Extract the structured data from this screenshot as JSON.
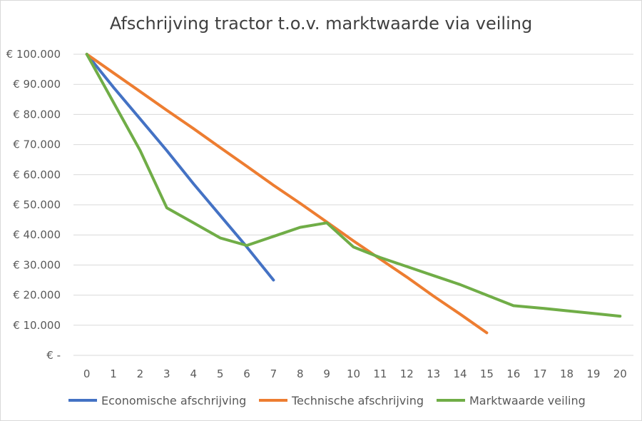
{
  "chart_data": {
    "type": "line",
    "title": "Afschrijving tractor t.o.v. marktwaarde via veiling",
    "xlabel": "",
    "ylabel": "",
    "x": [
      0,
      1,
      2,
      3,
      4,
      5,
      6,
      7,
      8,
      9,
      10,
      11,
      12,
      13,
      14,
      15,
      16,
      17,
      18,
      19,
      20
    ],
    "ylim": [
      0,
      100000
    ],
    "y_ticks": [
      {
        "value": 0,
        "label": "€ -"
      },
      {
        "value": 10000,
        "label": "€ 10.000"
      },
      {
        "value": 20000,
        "label": "€ 20.000"
      },
      {
        "value": 30000,
        "label": "€ 30.000"
      },
      {
        "value": 40000,
        "label": "€ 40.000"
      },
      {
        "value": 50000,
        "label": "€ 50.000"
      },
      {
        "value": 60000,
        "label": "€ 60.000"
      },
      {
        "value": 70000,
        "label": "€ 70.000"
      },
      {
        "value": 80000,
        "label": "€ 80.000"
      },
      {
        "value": 90000,
        "label": "€ 90.000"
      },
      {
        "value": 100000,
        "label": "€ 100.000"
      }
    ],
    "grid": true,
    "legend_position": "bottom",
    "series": [
      {
        "name": "Economische afschrijving",
        "color": "#4472c4",
        "points": [
          [
            0,
            100000
          ],
          [
            1,
            89000
          ],
          [
            2,
            78500
          ],
          [
            3,
            68000
          ],
          [
            4,
            57000
          ],
          [
            5,
            46500
          ],
          [
            6,
            36000
          ],
          [
            7,
            25000
          ]
        ]
      },
      {
        "name": "Technische afschrijving",
        "color": "#ed7d31",
        "points": [
          [
            0,
            100000
          ],
          [
            1,
            93800
          ],
          [
            2,
            87600
          ],
          [
            3,
            81400
          ],
          [
            4,
            75300
          ],
          [
            5,
            69000
          ],
          [
            6,
            62800
          ],
          [
            7,
            56500
          ],
          [
            8,
            50500
          ],
          [
            9,
            44300
          ],
          [
            10,
            38000
          ],
          [
            11,
            32000
          ],
          [
            12,
            26000
          ],
          [
            13,
            19700
          ],
          [
            14,
            13700
          ],
          [
            15,
            7500
          ]
        ]
      },
      {
        "name": "Marktwaarde veiling",
        "color": "#70ad47",
        "points": [
          [
            0,
            100000
          ],
          [
            1,
            84000
          ],
          [
            2,
            68000
          ],
          [
            3,
            49000
          ],
          [
            4,
            44000
          ],
          [
            5,
            39000
          ],
          [
            6,
            36500
          ],
          [
            7,
            39500
          ],
          [
            8,
            42500
          ],
          [
            9,
            44000
          ],
          [
            10,
            36000
          ],
          [
            11,
            32500
          ],
          [
            12,
            29500
          ],
          [
            13,
            26500
          ],
          [
            14,
            23500
          ],
          [
            15,
            20000
          ],
          [
            16,
            16500
          ],
          [
            17,
            15700
          ],
          [
            18,
            14800
          ],
          [
            19,
            13900
          ],
          [
            20,
            13000
          ]
        ]
      }
    ]
  }
}
